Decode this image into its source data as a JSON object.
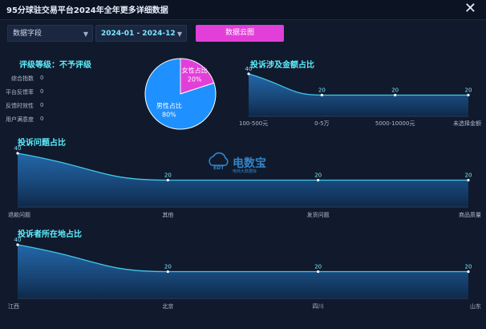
{
  "window": {
    "title": "95分球驻交易平台2024年全年更多详细数据"
  },
  "toolbar": {
    "field_select": "数据字段",
    "date_range": "2024-01 - 2024-12",
    "cloud_button": "数据云图"
  },
  "rating": {
    "title": "评级等级：不予评级",
    "items": [
      {
        "label": "综合指数",
        "value": "0"
      },
      {
        "label": "平台反馈率",
        "value": "0"
      },
      {
        "label": "反馈时效性",
        "value": "0"
      },
      {
        "label": "用户满意度",
        "value": "0"
      }
    ]
  },
  "watermark": {
    "brand": "电数宝",
    "tagline": "电商大数据库",
    "logo_text": "EDT"
  },
  "colors": {
    "male": "#1e90ff",
    "female": "#e23fd8",
    "line": "#3fc9e8",
    "accent": "#5ef0ff"
  },
  "chart_data": [
    {
      "type": "pie",
      "title": "",
      "slices": [
        {
          "name": "女性占比",
          "value": 20,
          "label": "20%",
          "color": "#e23fd8"
        },
        {
          "name": "男性占比",
          "value": 80,
          "label": "80%",
          "color": "#1e90ff"
        }
      ]
    },
    {
      "type": "area",
      "title": "投诉涉及金额占比",
      "categories": [
        "100-500元",
        "0-5万",
        "5000-10000元",
        "未选择金额"
      ],
      "values": [
        40,
        20,
        20,
        20
      ],
      "ylim": [
        0,
        40
      ]
    },
    {
      "type": "area",
      "title": "投诉问题占比",
      "categories": [
        "退款问题",
        "其他",
        "发货问题",
        "商品质量"
      ],
      "values": [
        40,
        20,
        20,
        20
      ],
      "ylim": [
        0,
        40
      ]
    },
    {
      "type": "area",
      "title": "投诉者所在地占比",
      "categories": [
        "江西",
        "北京",
        "四川",
        "山东"
      ],
      "values": [
        40,
        20,
        20,
        20
      ],
      "ylim": [
        0,
        40
      ]
    }
  ]
}
